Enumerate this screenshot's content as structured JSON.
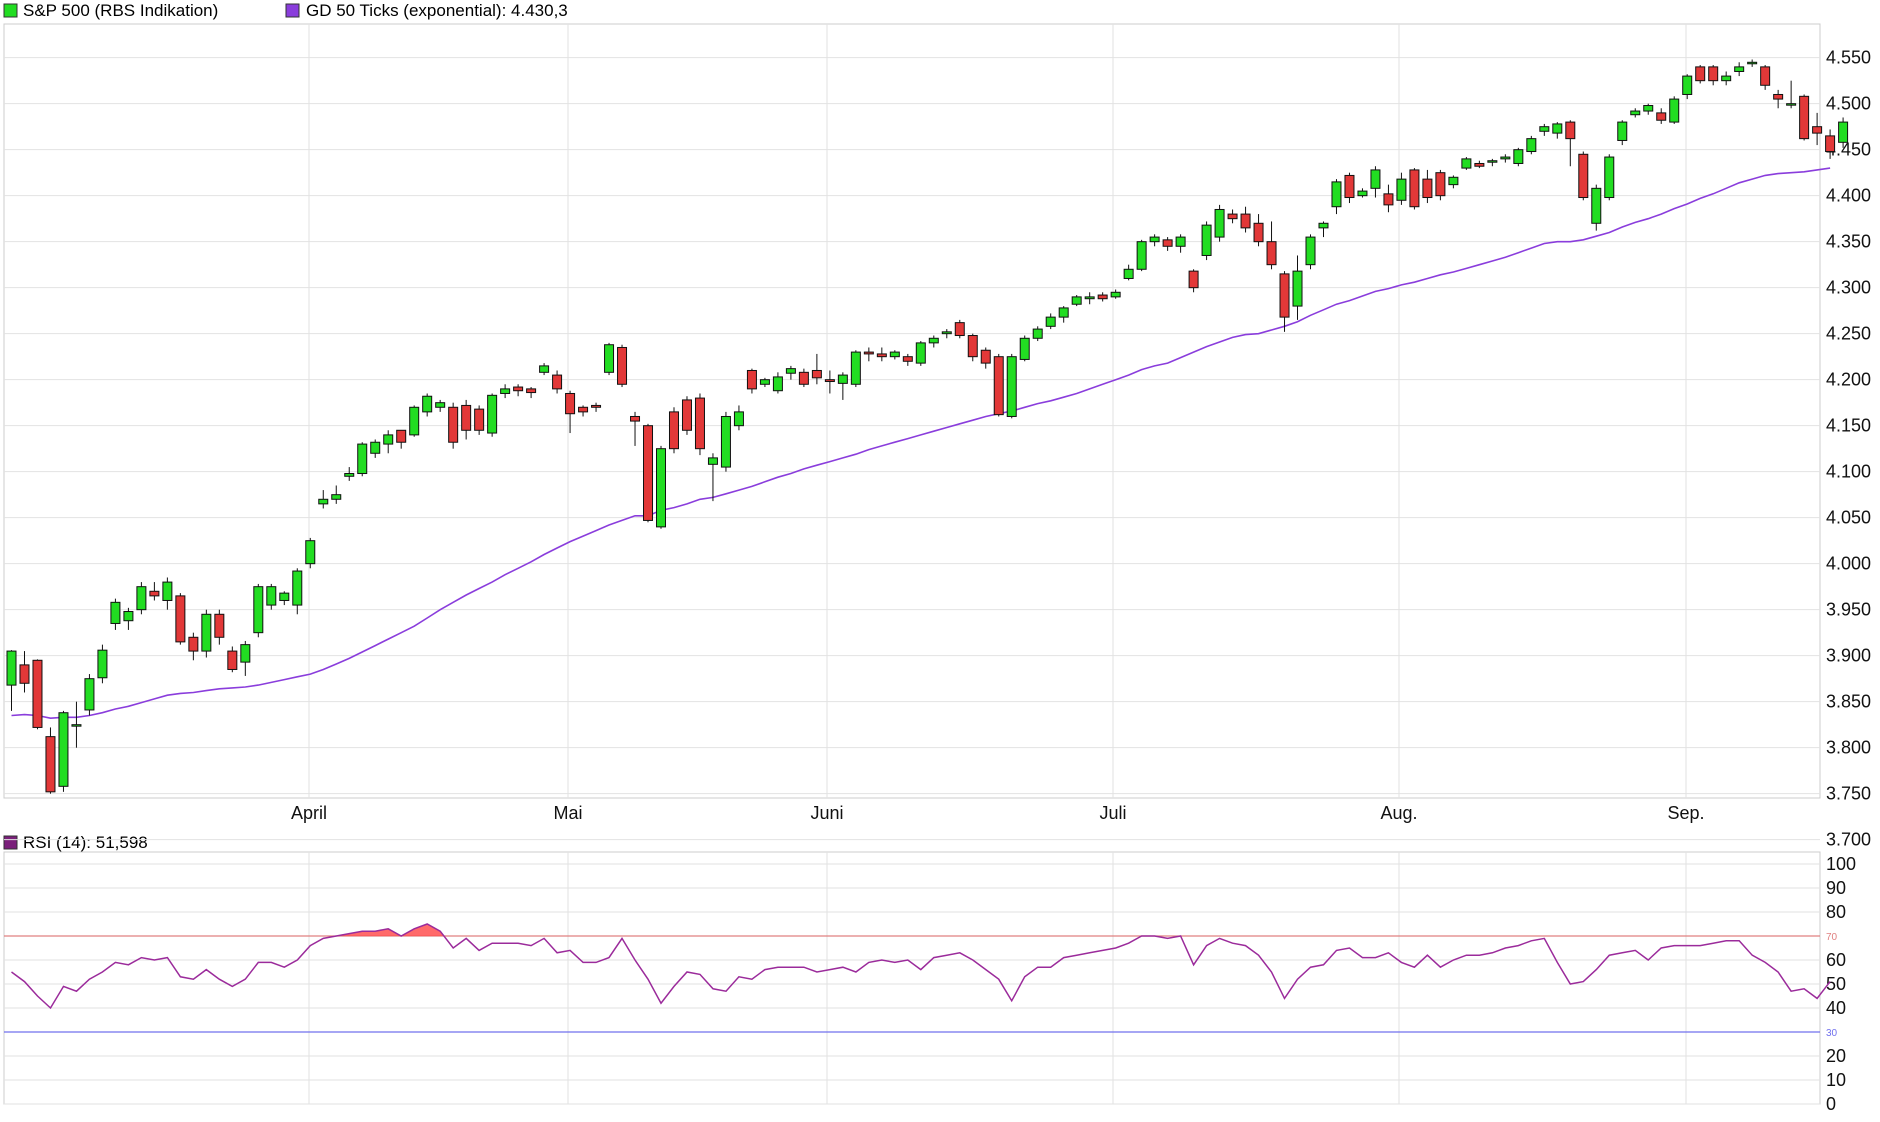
{
  "colors": {
    "up": "#22dd22",
    "down": "#e23838",
    "ma": "#8a3ddc",
    "rsi": "#9b2b9b",
    "rsi_upper_line": "#e08080",
    "rsi_lower_line": "#7070ee",
    "overbought_fill": "#ff5050",
    "grid": "#e2e2e2",
    "border": "#cccccc"
  },
  "legend": {
    "sp_label": "S&P 500 (RBS Indikation)",
    "ma_label": "GD 50 Ticks (exponential): 4.430,3",
    "rsi_label": "RSI (14): 51,598"
  },
  "chart_data": [
    {
      "type": "candlestick",
      "series": [
        {
          "name": "S&P 500 (RBS Indikation)"
        },
        {
          "name": "GD 50 Ticks (exponential)",
          "last": "4.430,3"
        }
      ],
      "ylim": [
        3680,
        4580
      ],
      "y_ticks": [
        "3.700",
        "3.750",
        "3.800",
        "3.850",
        "3.900",
        "3.950",
        "4.000",
        "4.050",
        "4.100",
        "4.150",
        "4.200",
        "4.250",
        "4.300",
        "4.350",
        "4.400",
        "4.450",
        "4.500",
        "4.550"
      ],
      "x_labels": [
        "April",
        "Mai",
        "Juni",
        "Juli",
        "Aug.",
        "Sep."
      ],
      "grid": true,
      "candles": [
        [
          3868,
          3905,
          3840,
          3906
        ],
        [
          3890,
          3870,
          3860,
          3905
        ],
        [
          3895,
          3822,
          3820,
          3896
        ],
        [
          3812,
          3752,
          3750,
          3822
        ],
        [
          3758,
          3838,
          3752,
          3840
        ],
        [
          3825,
          3825,
          3800,
          3850
        ],
        [
          3841,
          3875,
          3835,
          3880
        ],
        [
          3876,
          3906,
          3870,
          3912
        ],
        [
          3935,
          3958,
          3928,
          3962
        ],
        [
          3938,
          3948,
          3928,
          3952
        ],
        [
          3950,
          3975,
          3945,
          3980
        ],
        [
          3970,
          3965,
          3960,
          3980
        ],
        [
          3960,
          3980,
          3950,
          3985
        ],
        [
          3965,
          3915,
          3912,
          3968
        ],
        [
          3920,
          3905,
          3895,
          3925
        ],
        [
          3905,
          3945,
          3898,
          3950
        ],
        [
          3945,
          3920,
          3912,
          3950
        ],
        [
          3905,
          3885,
          3882,
          3910
        ],
        [
          3893,
          3912,
          3878,
          3916
        ],
        [
          3925,
          3975,
          3920,
          3978
        ],
        [
          3955,
          3975,
          3950,
          3978
        ],
        [
          3960,
          3968,
          3955,
          3970
        ],
        [
          3955,
          3992,
          3945,
          3995
        ],
        [
          4000,
          4025,
          3995,
          4028
        ],
        [
          4065,
          4070,
          4060,
          4080
        ],
        [
          4070,
          4075,
          4065,
          4085
        ],
        [
          4095,
          4098,
          4090,
          4105
        ],
        [
          4098,
          4130,
          4095,
          4132
        ],
        [
          4120,
          4132,
          4115,
          4135
        ],
        [
          4130,
          4140,
          4120,
          4145
        ],
        [
          4145,
          4132,
          4125,
          4145
        ],
        [
          4140,
          4170,
          4138,
          4172
        ],
        [
          4165,
          4182,
          4160,
          4185
        ],
        [
          4170,
          4175,
          4165,
          4178
        ],
        [
          4170,
          4132,
          4125,
          4175
        ],
        [
          4172,
          4145,
          4135,
          4178
        ],
        [
          4168,
          4145,
          4140,
          4172
        ],
        [
          4142,
          4183,
          4138,
          4185
        ],
        [
          4185,
          4190,
          4180,
          4195
        ],
        [
          4192,
          4188,
          4182,
          4195
        ],
        [
          4190,
          4186,
          4180,
          4192
        ],
        [
          4208,
          4215,
          4205,
          4218
        ],
        [
          4205,
          4190,
          4185,
          4210
        ],
        [
          4185,
          4163,
          4142,
          4188
        ],
        [
          4170,
          4165,
          4160,
          4172
        ],
        [
          4172,
          4170,
          4165,
          4175
        ],
        [
          4208,
          4238,
          4205,
          4240
        ],
        [
          4235,
          4195,
          4192,
          4238
        ],
        [
          4160,
          4155,
          4128,
          4165
        ],
        [
          4150,
          4047,
          4045,
          4152
        ],
        [
          4040,
          4125,
          4038,
          4128
        ],
        [
          4165,
          4125,
          4120,
          4170
        ],
        [
          4178,
          4145,
          4140,
          4182
        ],
        [
          4180,
          4125,
          4118,
          4185
        ],
        [
          4108,
          4115,
          4068,
          4120
        ],
        [
          4105,
          4160,
          4100,
          4165
        ],
        [
          4150,
          4165,
          4145,
          4172
        ],
        [
          4210,
          4190,
          4185,
          4212
        ],
        [
          4195,
          4200,
          4192,
          4202
        ],
        [
          4188,
          4203,
          4185,
          4208
        ],
        [
          4207,
          4212,
          4200,
          4215
        ],
        [
          4208,
          4195,
          4192,
          4212
        ],
        [
          4210,
          4202,
          4195,
          4228
        ],
        [
          4200,
          4198,
          4185,
          4210
        ],
        [
          4196,
          4205,
          4178,
          4208
        ],
        [
          4195,
          4230,
          4192,
          4232
        ],
        [
          4230,
          4228,
          4220,
          4235
        ],
        [
          4228,
          4225,
          4220,
          4235
        ],
        [
          4225,
          4230,
          4222,
          4232
        ],
        [
          4225,
          4220,
          4215,
          4228
        ],
        [
          4218,
          4240,
          4215,
          4242
        ],
        [
          4240,
          4245,
          4235,
          4248
        ],
        [
          4250,
          4252,
          4245,
          4255
        ],
        [
          4262,
          4248,
          4245,
          4265
        ],
        [
          4248,
          4225,
          4220,
          4250
        ],
        [
          4232,
          4218,
          4212,
          4235
        ],
        [
          4225,
          4162,
          4160,
          4228
        ],
        [
          4160,
          4225,
          4158,
          4228
        ],
        [
          4222,
          4245,
          4220,
          4248
        ],
        [
          4245,
          4255,
          4242,
          4258
        ],
        [
          4258,
          4268,
          4255,
          4272
        ],
        [
          4268,
          4278,
          4262,
          4280
        ],
        [
          4282,
          4290,
          4280,
          4292
        ],
        [
          4288,
          4290,
          4282,
          4295
        ],
        [
          4292,
          4288,
          4285,
          4295
        ],
        [
          4290,
          4295,
          4288,
          4298
        ],
        [
          4310,
          4320,
          4308,
          4325
        ],
        [
          4320,
          4350,
          4318,
          4352
        ],
        [
          4350,
          4355,
          4345,
          4358
        ],
        [
          4352,
          4345,
          4340,
          4355
        ],
        [
          4345,
          4355,
          4338,
          4358
        ],
        [
          4318,
          4300,
          4295,
          4320
        ],
        [
          4335,
          4368,
          4330,
          4372
        ],
        [
          4355,
          4385,
          4350,
          4390
        ],
        [
          4380,
          4375,
          4370,
          4385
        ],
        [
          4380,
          4365,
          4360,
          4388
        ],
        [
          4370,
          4350,
          4345,
          4380
        ],
        [
          4350,
          4325,
          4320,
          4372
        ],
        [
          4315,
          4268,
          4252,
          4318
        ],
        [
          4280,
          4318,
          4265,
          4335
        ],
        [
          4325,
          4355,
          4320,
          4358
        ],
        [
          4365,
          4370,
          4355,
          4372
        ],
        [
          4388,
          4415,
          4380,
          4418
        ],
        [
          4422,
          4398,
          4392,
          4425
        ],
        [
          4400,
          4405,
          4398,
          4408
        ],
        [
          4408,
          4428,
          4398,
          4432
        ],
        [
          4402,
          4390,
          4382,
          4412
        ],
        [
          4395,
          4418,
          4390,
          4425
        ],
        [
          4428,
          4388,
          4385,
          4430
        ],
        [
          4418,
          4398,
          4392,
          4428
        ],
        [
          4425,
          4400,
          4395,
          4428
        ],
        [
          4412,
          4420,
          4408,
          4422
        ],
        [
          4430,
          4440,
          4428,
          4442
        ],
        [
          4435,
          4432,
          4430,
          4438
        ],
        [
          4438,
          4438,
          4432,
          4440
        ],
        [
          4440,
          4442,
          4436,
          4445
        ],
        [
          4435,
          4450,
          4432,
          4452
        ],
        [
          4448,
          4462,
          4445,
          4465
        ],
        [
          4470,
          4475,
          4465,
          4478
        ],
        [
          4468,
          4478,
          4462,
          4480
        ],
        [
          4480,
          4462,
          4432,
          4482
        ],
        [
          4445,
          4398,
          4395,
          4448
        ],
        [
          4370,
          4408,
          4362,
          4412
        ],
        [
          4398,
          4442,
          4395,
          4445
        ],
        [
          4460,
          4480,
          4455,
          4482
        ],
        [
          4488,
          4492,
          4485,
          4495
        ],
        [
          4492,
          4498,
          4488,
          4500
        ],
        [
          4490,
          4482,
          4478,
          4495
        ],
        [
          4480,
          4505,
          4478,
          4508
        ],
        [
          4510,
          4530,
          4505,
          4532
        ],
        [
          4540,
          4525,
          4522,
          4542
        ],
        [
          4540,
          4525,
          4520,
          4542
        ],
        [
          4525,
          4530,
          4520,
          4535
        ],
        [
          4535,
          4540,
          4530,
          4545
        ],
        [
          4545,
          4545,
          4540,
          4548
        ],
        [
          4540,
          4520,
          4515,
          4542
        ],
        [
          4510,
          4505,
          4495,
          4515
        ],
        [
          4500,
          4500,
          4495,
          4525
        ],
        [
          4508,
          4462,
          4460,
          4510
        ],
        [
          4475,
          4468,
          4455,
          4490
        ],
        [
          4465,
          4448,
          4440,
          4472
        ],
        [
          4458,
          4480,
          4452,
          4485
        ]
      ],
      "ma_values": [
        3835,
        3836,
        3835,
        3832,
        3833,
        3833,
        3835,
        3838,
        3842,
        3845,
        3849,
        3853,
        3857,
        3859,
        3860,
        3862,
        3864,
        3865,
        3866,
        3868,
        3871,
        3874,
        3877,
        3880,
        3885,
        3891,
        3897,
        3904,
        3911,
        3918,
        3925,
        3932,
        3941,
        3950,
        3958,
        3966,
        3973,
        3980,
        3988,
        3995,
        4002,
        4010,
        4017,
        4024,
        4030,
        4036,
        4042,
        4047,
        4052,
        4052,
        4058,
        4061,
        4065,
        4070,
        4072,
        4076,
        4080,
        4084,
        4089,
        4094,
        4098,
        4103,
        4107,
        4111,
        4115,
        4119,
        4124,
        4128,
        4132,
        4136,
        4140,
        4144,
        4148,
        4152,
        4156,
        4160,
        4163,
        4166,
        4170,
        4174,
        4177,
        4181,
        4185,
        4190,
        4195,
        4200,
        4205,
        4211,
        4215,
        4218,
        4224,
        4230,
        4236,
        4241,
        4246,
        4249,
        4250,
        4254,
        4258,
        4263,
        4270,
        4276,
        4282,
        4286,
        4291,
        4296,
        4299,
        4303,
        4306,
        4310,
        4314,
        4317,
        4321,
        4325,
        4329,
        4333,
        4338,
        4343,
        4348,
        4350,
        4350,
        4352,
        4356,
        4360,
        4366,
        4371,
        4375,
        4380,
        4386,
        4391,
        4397,
        4402,
        4408,
        4414,
        4418,
        4422,
        4424,
        4425,
        4426,
        4428,
        4430
      ],
      "rsi": {
        "title": "RSI (14): 51,598",
        "ylim": [
          0,
          100
        ],
        "y_ticks": [
          "0",
          "10",
          "20",
          "40",
          "50",
          "60",
          "80",
          "90",
          "100"
        ],
        "levels": [
          {
            "value": 70,
            "label": "70"
          },
          {
            "value": 30,
            "label": "30"
          }
        ],
        "values": [
          55,
          51,
          45,
          40,
          49,
          47,
          52,
          55,
          59,
          58,
          61,
          60,
          61,
          53,
          52,
          56,
          52,
          49,
          52,
          59,
          59,
          57,
          60,
          66,
          69,
          70,
          71,
          72,
          72,
          73,
          70,
          73,
          75,
          72,
          65,
          69,
          64,
          67,
          67,
          67,
          66,
          69,
          63,
          64,
          59,
          59,
          61,
          69,
          60,
          52,
          42,
          49,
          55,
          54,
          48,
          47,
          53,
          52,
          56,
          57,
          57,
          57,
          55,
          56,
          57,
          55,
          59,
          60,
          59,
          60,
          56,
          61,
          62,
          63,
          60,
          56,
          52,
          43,
          53,
          57,
          57,
          61,
          62,
          63,
          64,
          65,
          67,
          70,
          70,
          69,
          70,
          58,
          66,
          69,
          67,
          66,
          62,
          55,
          44,
          52,
          57,
          58,
          64,
          65,
          61,
          61,
          63,
          59,
          57,
          62,
          57,
          60,
          62,
          62,
          63,
          65,
          66,
          68,
          69,
          59,
          50,
          51,
          56,
          62,
          63,
          64,
          60,
          65,
          66,
          66,
          66,
          67,
          68,
          68,
          62,
          59,
          55,
          47,
          48,
          44,
          51
        ]
      }
    }
  ]
}
